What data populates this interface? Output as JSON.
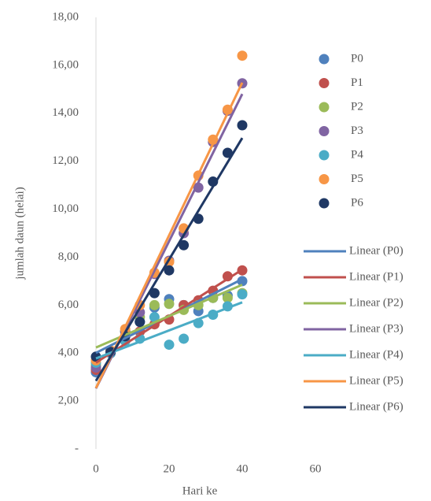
{
  "chart_data": {
    "type": "scatter",
    "x_label": "Hari ke",
    "y_label": "jumlah daun (helai)",
    "x": [
      0,
      4,
      8,
      12,
      16,
      20,
      24,
      28,
      32,
      36,
      40
    ],
    "xlim": [
      0,
      60
    ],
    "xticks": [
      0,
      20,
      40,
      60
    ],
    "ylim": [
      0,
      18
    ],
    "yticks": [
      {
        "value": 0,
        "label": "-"
      },
      {
        "value": 2,
        "label": "2,00"
      },
      {
        "value": 4,
        "label": "4,00"
      },
      {
        "value": 6,
        "label": "6,00"
      },
      {
        "value": 8,
        "label": "8,00"
      },
      {
        "value": 10,
        "label": "10,00"
      },
      {
        "value": 12,
        "label": "12,00"
      },
      {
        "value": 14,
        "label": "14,00"
      },
      {
        "value": 16,
        "label": "16,00"
      },
      {
        "value": 18,
        "label": "18,00"
      }
    ],
    "grid": false,
    "trendline": "linear",
    "series": [
      {
        "name": "P0",
        "trendline_name": "Linear (P0)",
        "color": "#4f81bd",
        "values": [
          3.2,
          4.0,
          4.9,
          5.3,
          5.9,
          6.25,
          6.0,
          5.75,
          6.3,
          6.4,
          7.0
        ]
      },
      {
        "name": "P1",
        "trendline_name": "Linear (P1)",
        "color": "#c0504d",
        "values": [
          3.3,
          4.0,
          4.7,
          4.9,
          5.2,
          5.4,
          6.0,
          6.2,
          6.6,
          7.2,
          7.45
        ]
      },
      {
        "name": "P2",
        "trendline_name": "Linear (P2)",
        "color": "#9bbb59",
        "values": [
          3.5,
          4.1,
          4.9,
          5.5,
          6.0,
          6.05,
          5.8,
          6.0,
          6.3,
          6.3,
          6.5
        ]
      },
      {
        "name": "P3",
        "trendline_name": "Linear (P3)",
        "color": "#8064a2",
        "values": [
          3.4,
          4.1,
          4.9,
          5.7,
          7.3,
          7.85,
          9.0,
          10.9,
          12.8,
          14.1,
          15.25
        ]
      },
      {
        "name": "P4",
        "trendline_name": "Linear (P4)",
        "color": "#4bacc6",
        "values": [
          3.6,
          4.0,
          4.5,
          4.6,
          5.5,
          4.35,
          4.6,
          5.25,
          5.6,
          5.95,
          6.45
        ]
      },
      {
        "name": "P5",
        "trendline_name": "Linear (P5)",
        "color": "#f79646",
        "values": [
          3.7,
          4.1,
          5.0,
          6.0,
          7.35,
          7.8,
          9.2,
          11.4,
          12.9,
          14.15,
          16.4
        ]
      },
      {
        "name": "P6",
        "trendline_name": "Linear (P6)",
        "color": "#1f3864",
        "values": [
          3.85,
          4.05,
          4.7,
          5.3,
          6.5,
          7.45,
          8.5,
          9.6,
          11.15,
          12.35,
          13.5
        ]
      }
    ]
  }
}
